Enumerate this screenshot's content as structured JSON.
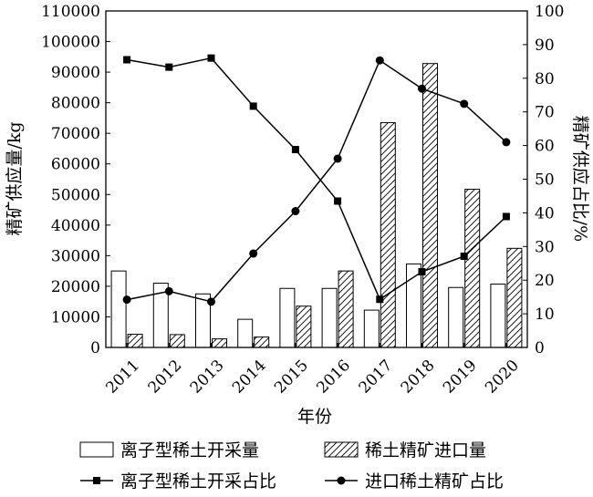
{
  "chart_data": {
    "type": "bar",
    "categories": [
      "2011",
      "2012",
      "2013",
      "2014",
      "2015",
      "2016",
      "2017",
      "2018",
      "2019",
      "2020"
    ],
    "series": [
      {
        "name": "离子型稀土开采量",
        "type": "bar",
        "axis": "left",
        "style": "white-fill",
        "values": [
          25000,
          21000,
          17500,
          9200,
          19300,
          19300,
          12200,
          27300,
          19600,
          20700
        ]
      },
      {
        "name": "稀土精矿进口量",
        "type": "bar",
        "axis": "left",
        "style": "hatched",
        "values": [
          4300,
          4200,
          2800,
          3400,
          13500,
          25000,
          73500,
          92800,
          51700,
          32400
        ]
      },
      {
        "name": "离子型稀土开采占比",
        "type": "line",
        "axis": "right",
        "marker": "square",
        "values": [
          85.5,
          83.3,
          86.0,
          71.7,
          58.8,
          43.5,
          14.3,
          22.5,
          27.1,
          38.9
        ]
      },
      {
        "name": "进口稀土精矿占比",
        "type": "line",
        "axis": "right",
        "marker": "circle",
        "values": [
          14.2,
          16.7,
          13.6,
          27.9,
          40.5,
          56.1,
          85.3,
          76.9,
          72.4,
          61.0
        ]
      }
    ],
    "xlabel": "年份",
    "ylabel": "精矿供应量/kg",
    "ylabel_right": "精矿供应占比/%",
    "ylim": [
      0,
      110000
    ],
    "ylim_right": [
      0,
      100
    ],
    "yticks": [
      "0",
      "10000",
      "20000",
      "30000",
      "40000",
      "50000",
      "60000",
      "70000",
      "80000",
      "90000",
      "100000",
      "110000"
    ],
    "yticks_right": [
      "0",
      "10",
      "20",
      "30",
      "40",
      "50",
      "60",
      "70",
      "80",
      "90",
      "100"
    ],
    "grid": false,
    "legend": "bottom"
  }
}
